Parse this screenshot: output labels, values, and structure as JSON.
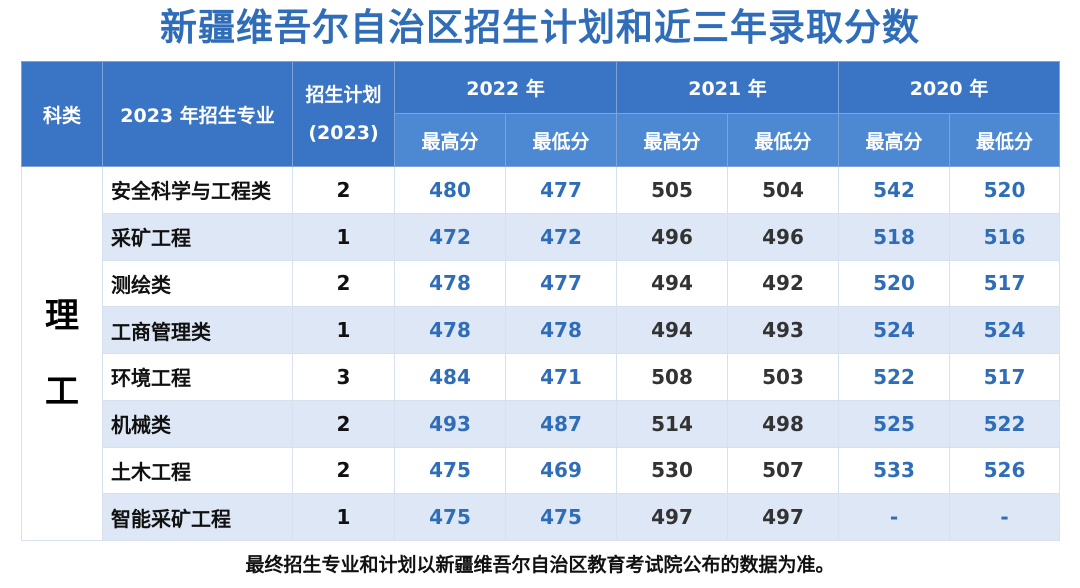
{
  "title": "新疆维吾尔自治区招生计划和近三年录取分数",
  "header": {
    "subject": "科类",
    "major": "2023 年招生专业",
    "plan_line1": "招生计划",
    "plan_line2": "(2023)",
    "years": [
      "2022 年",
      "2021 年",
      "2020 年"
    ],
    "max_label": "最高分",
    "min_label": "最低分"
  },
  "subject_label": [
    "理",
    "工"
  ],
  "rows": [
    {
      "major": "安全科学与工程类",
      "plan": "2",
      "s2022": [
        "480",
        "477"
      ],
      "s2021": [
        "505",
        "504"
      ],
      "s2020": [
        "542",
        "520"
      ]
    },
    {
      "major": "采矿工程",
      "plan": "1",
      "s2022": [
        "472",
        "472"
      ],
      "s2021": [
        "496",
        "496"
      ],
      "s2020": [
        "518",
        "516"
      ]
    },
    {
      "major": "测绘类",
      "plan": "2",
      "s2022": [
        "478",
        "477"
      ],
      "s2021": [
        "494",
        "492"
      ],
      "s2020": [
        "520",
        "517"
      ]
    },
    {
      "major": "工商管理类",
      "plan": "1",
      "s2022": [
        "478",
        "478"
      ],
      "s2021": [
        "494",
        "493"
      ],
      "s2020": [
        "524",
        "524"
      ]
    },
    {
      "major": "环境工程",
      "plan": "3",
      "s2022": [
        "484",
        "471"
      ],
      "s2021": [
        "508",
        "503"
      ],
      "s2020": [
        "522",
        "517"
      ]
    },
    {
      "major": "机械类",
      "plan": "2",
      "s2022": [
        "493",
        "487"
      ],
      "s2021": [
        "514",
        "498"
      ],
      "s2020": [
        "525",
        "522"
      ]
    },
    {
      "major": "土木工程",
      "plan": "2",
      "s2022": [
        "475",
        "469"
      ],
      "s2021": [
        "530",
        "507"
      ],
      "s2020": [
        "533",
        "526"
      ]
    },
    {
      "major": "智能采矿工程",
      "plan": "1",
      "s2022": [
        "475",
        "475"
      ],
      "s2021": [
        "497",
        "497"
      ],
      "s2020": [
        "-",
        "-"
      ]
    }
  ],
  "footnote": "最终招生专业和计划以新疆维吾尔自治区教育考试院公布的数据为准。"
}
